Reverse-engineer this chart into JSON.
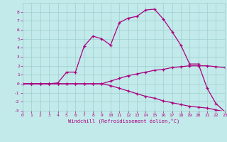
{
  "xlabel": "Windchill (Refroidissement éolien,°C)",
  "xlim": [
    0,
    23
  ],
  "ylim": [
    -3,
    9
  ],
  "yticks": [
    -3,
    -2,
    -1,
    0,
    1,
    2,
    3,
    4,
    5,
    6,
    7,
    8
  ],
  "xticks": [
    0,
    1,
    2,
    3,
    4,
    5,
    6,
    7,
    8,
    9,
    10,
    11,
    12,
    13,
    14,
    15,
    16,
    17,
    18,
    19,
    20,
    21,
    22,
    23
  ],
  "bg_color": "#c2eaea",
  "grid_color": "#9fcece",
  "line_color": "#aa0080",
  "curve1_x": [
    0,
    1,
    2,
    3,
    4,
    5,
    6,
    7,
    8,
    9,
    10,
    11,
    12,
    13,
    14,
    15,
    16,
    17,
    18,
    19,
    20,
    21,
    22,
    23
  ],
  "curve1_y": [
    0,
    0,
    0,
    0,
    0.1,
    1.3,
    1.3,
    4.2,
    5.3,
    5.0,
    4.3,
    6.8,
    7.3,
    7.5,
    8.2,
    8.3,
    7.2,
    5.8,
    4.3,
    2.2,
    2.2,
    -0.5,
    -2.2,
    -3.1
  ],
  "curve2_x": [
    0,
    1,
    2,
    3,
    4,
    5,
    6,
    7,
    8,
    9,
    10,
    11,
    12,
    13,
    14,
    15,
    16,
    17,
    18,
    19,
    20,
    21,
    22,
    23
  ],
  "curve2_y": [
    0,
    0,
    0,
    0,
    0.0,
    0.0,
    0.0,
    0.0,
    0.0,
    0.0,
    0.3,
    0.6,
    0.9,
    1.1,
    1.3,
    1.5,
    1.6,
    1.8,
    1.9,
    2.0,
    2.0,
    2.0,
    1.9,
    1.8
  ],
  "curve3_x": [
    0,
    1,
    2,
    3,
    4,
    5,
    6,
    7,
    8,
    9,
    10,
    11,
    12,
    13,
    14,
    15,
    16,
    17,
    18,
    19,
    20,
    21,
    22,
    23
  ],
  "curve3_y": [
    0,
    0,
    0,
    0,
    0.0,
    0.0,
    0.0,
    0.0,
    0.0,
    0.0,
    -0.2,
    -0.5,
    -0.8,
    -1.1,
    -1.4,
    -1.6,
    -1.9,
    -2.1,
    -2.3,
    -2.5,
    -2.6,
    -2.7,
    -2.9,
    -3.1
  ]
}
